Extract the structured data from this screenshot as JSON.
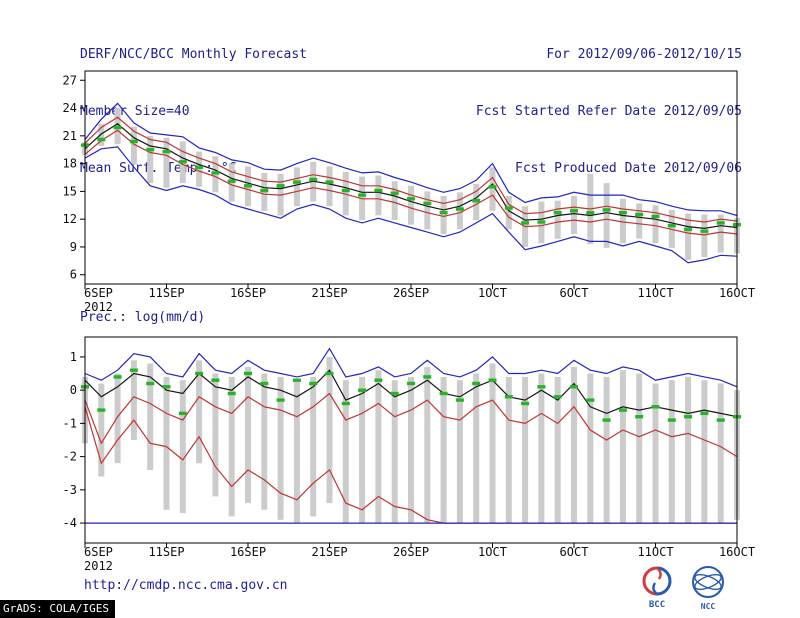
{
  "header": {
    "title": "DERF/NCC/BCC Monthly Forecast",
    "member_size": "Member Size=40",
    "period": "For 2012/09/06-2012/10/15",
    "ref_date": "Fcst Started Refer Date 2012/09/05",
    "produced_date": "Fcst Produced Date 2012/09/06"
  },
  "footer": {
    "url": "http://cmdp.ncc.cma.gov.cn",
    "grads_credit": "GrADS: COLA/IGES",
    "bcc_label": "BCC",
    "ncc_label": "NCC"
  },
  "colors": {
    "header_text": "#20208c",
    "axis": "#000000",
    "bar": "#cccccc",
    "blue_line": "#2424c0",
    "red_line": "#c03434",
    "black_line": "#161616",
    "green_dash": "#27b227"
  },
  "chart_data": [
    {
      "type": "line",
      "panel_label": "Mean Surf. Temp.: °C",
      "ylabel": "°C",
      "n_days": 41,
      "x_tick_indices": [
        0,
        5,
        10,
        15,
        20,
        25,
        30,
        35,
        40
      ],
      "x_tick_labels": [
        "6SEP",
        "11SEP",
        "16SEP",
        "21SEP",
        "26SEP",
        "1OCT",
        "6OCT",
        "11OCT",
        "16OCT"
      ],
      "x_sub_label": "2012",
      "ylim": [
        5,
        28
      ],
      "yticks": [
        6,
        9,
        12,
        15,
        18,
        21,
        24,
        27
      ],
      "bars": {
        "name": "ensemble-spread",
        "color": "#cccccc",
        "high": [
          20.3,
          22.3,
          24.0,
          22.0,
          21.0,
          20.8,
          20.4,
          19.3,
          18.8,
          18.0,
          17.7,
          17.0,
          16.9,
          17.6,
          18.2,
          17.7,
          17.1,
          16.6,
          16.7,
          16.1,
          15.6,
          15.0,
          14.5,
          14.9,
          15.8,
          17.6,
          14.5,
          13.4,
          13.9,
          14.0,
          14.5,
          16.9,
          15.9,
          14.2,
          13.7,
          13.5,
          13.0,
          12.6,
          12.5,
          12.5,
          12.1
        ],
        "low": [
          18.9,
          19.9,
          20.1,
          17.9,
          15.9,
          15.4,
          15.9,
          15.5,
          14.9,
          13.9,
          13.4,
          12.9,
          12.4,
          13.4,
          13.9,
          13.4,
          12.4,
          11.9,
          12.4,
          11.9,
          11.4,
          10.9,
          10.4,
          10.9,
          11.9,
          12.9,
          10.9,
          9.0,
          9.4,
          9.9,
          10.4,
          9.3,
          8.9,
          9.4,
          9.9,
          9.4,
          8.9,
          7.6,
          7.9,
          8.4,
          8.3
        ]
      },
      "series": [
        {
          "name": "member-max",
          "color": "#2424c0",
          "values": [
            20.6,
            22.8,
            24.5,
            22.4,
            21.3,
            21.1,
            20.9,
            19.7,
            19.2,
            18.4,
            18.1,
            17.4,
            17.3,
            18.0,
            18.6,
            18.1,
            17.5,
            17.0,
            17.1,
            16.5,
            16.0,
            15.4,
            14.9,
            15.3,
            16.2,
            18.0,
            14.9,
            13.8,
            14.3,
            14.4,
            14.9,
            14.6,
            14.6,
            14.6,
            14.1,
            13.9,
            13.4,
            13.0,
            12.9,
            12.9,
            12.4
          ]
        },
        {
          "name": "upper-tercile",
          "color": "#c03434",
          "values": [
            20.2,
            21.9,
            23.0,
            21.5,
            20.6,
            20.3,
            19.3,
            18.6,
            18.0,
            17.1,
            16.6,
            16.1,
            16.0,
            16.4,
            16.8,
            16.5,
            16.1,
            15.6,
            15.6,
            15.2,
            14.6,
            14.1,
            13.7,
            14.1,
            15.0,
            16.5,
            13.6,
            12.6,
            12.7,
            13.1,
            13.3,
            13.1,
            13.4,
            13.1,
            12.9,
            12.7,
            12.3,
            11.9,
            11.7,
            12.0,
            11.8
          ]
        },
        {
          "name": "ensemble-mean",
          "color": "#161616",
          "values": [
            19.6,
            21.2,
            22.3,
            20.8,
            19.9,
            19.6,
            18.6,
            17.9,
            17.3,
            16.4,
            15.9,
            15.4,
            15.3,
            15.7,
            16.1,
            15.8,
            15.4,
            14.9,
            14.9,
            14.5,
            13.9,
            13.4,
            13.0,
            13.4,
            14.3,
            15.8,
            12.9,
            11.9,
            12.0,
            12.4,
            12.6,
            12.4,
            12.7,
            12.4,
            12.2,
            12.0,
            11.6,
            11.2,
            11.0,
            11.3,
            11.1
          ]
        },
        {
          "name": "lower-tercile",
          "color": "#c03434",
          "values": [
            19.0,
            20.5,
            21.6,
            20.1,
            19.2,
            18.9,
            17.9,
            17.2,
            16.6,
            15.7,
            15.2,
            14.7,
            14.6,
            15.0,
            15.4,
            15.1,
            14.7,
            14.2,
            14.2,
            13.8,
            13.2,
            12.7,
            12.3,
            12.7,
            13.6,
            14.6,
            12.2,
            11.2,
            11.3,
            11.7,
            11.9,
            11.7,
            12.0,
            11.7,
            11.5,
            11.3,
            10.9,
            10.5,
            10.3,
            10.6,
            10.4
          ]
        },
        {
          "name": "member-min",
          "color": "#2424c0",
          "values": [
            18.6,
            19.6,
            19.8,
            17.6,
            15.6,
            15.1,
            15.6,
            15.2,
            14.6,
            13.6,
            13.1,
            12.6,
            12.1,
            13.1,
            13.6,
            13.1,
            12.1,
            11.6,
            12.1,
            11.6,
            11.1,
            10.6,
            10.1,
            10.6,
            11.6,
            12.6,
            10.6,
            8.7,
            9.1,
            9.6,
            10.1,
            9.6,
            9.6,
            9.1,
            9.6,
            9.1,
            8.6,
            7.3,
            7.6,
            8.1,
            8.0
          ]
        }
      ],
      "obs": {
        "name": "verification-dash",
        "color": "#27b227",
        "values": [
          20.0,
          20.6,
          21.9,
          20.4,
          19.5,
          19.3,
          18.2,
          17.6,
          17.0,
          16.1,
          15.6,
          15.1,
          15.6,
          16.0,
          16.3,
          16.0,
          15.1,
          14.6,
          15.1,
          14.8,
          14.2,
          13.7,
          12.7,
          13.1,
          14.0,
          15.5,
          13.2,
          11.6,
          11.7,
          12.7,
          12.9,
          12.7,
          13.0,
          12.7,
          12.5,
          12.3,
          11.3,
          10.9,
          10.7,
          11.6,
          11.4
        ]
      }
    },
    {
      "type": "line",
      "panel_label": "Prec.: log(mm/d)",
      "ylabel": "log(mm/d)",
      "n_days": 41,
      "x_tick_indices": [
        0,
        5,
        10,
        15,
        20,
        25,
        30,
        35,
        40
      ],
      "x_tick_labels": [
        "6SEP",
        "11SEP",
        "16SEP",
        "21SEP",
        "26SEP",
        "1OCT",
        "6OCT",
        "11OCT",
        "16OCT"
      ],
      "x_sub_label": "2012",
      "ylim": [
        -4.6,
        1.6
      ],
      "yticks": [
        1,
        0,
        -1,
        -2,
        -3,
        -4
      ],
      "bars": {
        "name": "ensemble-spread",
        "color": "#cccccc",
        "high": [
          0.4,
          0.2,
          0.5,
          0.9,
          0.8,
          0.4,
          0.3,
          0.9,
          0.5,
          0.4,
          0.7,
          0.5,
          0.4,
          0.3,
          0.4,
          1.0,
          0.3,
          0.4,
          0.6,
          0.3,
          0.4,
          0.7,
          0.4,
          0.3,
          0.5,
          0.8,
          0.4,
          0.4,
          0.5,
          0.4,
          0.7,
          0.5,
          0.4,
          0.6,
          0.5,
          0.2,
          0.3,
          0.4,
          0.3,
          0.2,
          0.0
        ],
        "low": [
          -1.6,
          -2.6,
          -2.2,
          -1.5,
          -2.4,
          -3.6,
          -3.7,
          -2.2,
          -3.2,
          -3.8,
          -3.4,
          -3.6,
          -3.9,
          -4.0,
          -3.8,
          -3.4,
          -4.0,
          -4.0,
          -4.0,
          -4.0,
          -4.0,
          -4.0,
          -4.0,
          -4.0,
          -4.0,
          -4.0,
          -4.0,
          -4.0,
          -4.0,
          -4.0,
          -4.0,
          -4.0,
          -4.0,
          -4.0,
          -4.0,
          -4.0,
          -4.0,
          -4.0,
          -4.0,
          -4.0,
          -3.9
        ]
      },
      "series": [
        {
          "name": "member-max",
          "color": "#2424c0",
          "values": [
            0.5,
            0.3,
            0.6,
            1.1,
            1.0,
            0.5,
            0.4,
            1.1,
            0.6,
            0.5,
            0.9,
            0.6,
            0.5,
            0.4,
            0.5,
            1.25,
            0.4,
            0.5,
            0.7,
            0.4,
            0.5,
            0.9,
            0.5,
            0.4,
            0.6,
            1.0,
            0.5,
            0.5,
            0.6,
            0.5,
            0.9,
            0.6,
            0.5,
            0.7,
            0.6,
            0.3,
            0.4,
            0.5,
            0.4,
            0.3,
            0.1
          ]
        },
        {
          "name": "ensemble-mean",
          "color": "#161616",
          "values": [
            0.3,
            -0.2,
            0.1,
            0.5,
            0.4,
            0.0,
            -0.1,
            0.5,
            0.1,
            0.0,
            0.4,
            0.1,
            0.0,
            -0.2,
            0.1,
            0.6,
            -0.3,
            -0.1,
            0.2,
            -0.2,
            0.0,
            0.3,
            -0.1,
            -0.2,
            0.1,
            0.3,
            -0.2,
            -0.3,
            0.0,
            -0.3,
            0.2,
            -0.5,
            -0.7,
            -0.5,
            -0.6,
            -0.5,
            -0.6,
            -0.7,
            -0.6,
            -0.7,
            -0.8
          ]
        },
        {
          "name": "lower-tercile",
          "color": "#c03434",
          "values": [
            -0.3,
            -1.6,
            -0.8,
            -0.2,
            -0.4,
            -0.7,
            -0.9,
            -0.2,
            -0.5,
            -0.7,
            -0.2,
            -0.5,
            -0.6,
            -0.8,
            -0.5,
            -0.1,
            -0.9,
            -0.7,
            -0.4,
            -0.8,
            -0.6,
            -0.3,
            -0.8,
            -0.9,
            -0.5,
            -0.3,
            -0.9,
            -1.0,
            -0.7,
            -1.0,
            -0.5,
            -1.2,
            -1.5,
            -1.2,
            -1.4,
            -1.2,
            -1.4,
            -1.3,
            -1.5,
            -1.7,
            -2.0
          ]
        },
        {
          "name": "member-min-red",
          "color": "#c03434",
          "values": [
            -0.5,
            -2.2,
            -1.5,
            -0.9,
            -1.6,
            -1.7,
            -2.1,
            -1.4,
            -2.3,
            -2.9,
            -2.4,
            -2.7,
            -3.1,
            -3.3,
            -2.8,
            -2.4,
            -3.4,
            -3.6,
            -3.2,
            -3.5,
            -3.6,
            -3.9,
            -4.0,
            -4.0,
            -4.0,
            -4.0,
            -4.0,
            -4.0,
            -4.0,
            -4.0,
            -4.0,
            -4.0,
            -4.0,
            -4.0,
            -4.0,
            -4.0,
            -4.0,
            -4.0,
            -4.0,
            -4.0,
            -4.0
          ]
        },
        {
          "name": "log-floor",
          "color": "#2424c0",
          "values": [
            -4.0,
            -4.0,
            -4.0,
            -4.0,
            -4.0,
            -4.0,
            -4.0,
            -4.0,
            -4.0,
            -4.0,
            -4.0,
            -4.0,
            -4.0,
            -4.0,
            -4.0,
            -4.0,
            -4.0,
            -4.0,
            -4.0,
            -4.0,
            -4.0,
            -4.0,
            -4.0,
            -4.0,
            -4.0,
            -4.0,
            -4.0,
            -4.0,
            -4.0,
            -4.0,
            -4.0,
            -4.0,
            -4.0,
            -4.0,
            -4.0,
            -4.0,
            -4.0,
            -4.0,
            -4.0,
            -4.0,
            -4.0
          ]
        }
      ],
      "obs": {
        "name": "verification-dash",
        "color": "#27b227",
        "values": [
          0.1,
          -0.6,
          0.4,
          0.6,
          0.2,
          0.1,
          -0.7,
          0.5,
          0.3,
          -0.1,
          0.5,
          0.2,
          -0.3,
          0.3,
          0.2,
          0.5,
          -0.4,
          0.0,
          0.3,
          -0.1,
          0.2,
          0.4,
          -0.1,
          -0.3,
          0.2,
          0.3,
          -0.2,
          -0.4,
          0.1,
          -0.2,
          0.1,
          -0.3,
          -0.9,
          -0.6,
          -0.8,
          -0.5,
          -0.9,
          -0.8,
          -0.7,
          -0.9,
          -0.8
        ]
      }
    }
  ]
}
